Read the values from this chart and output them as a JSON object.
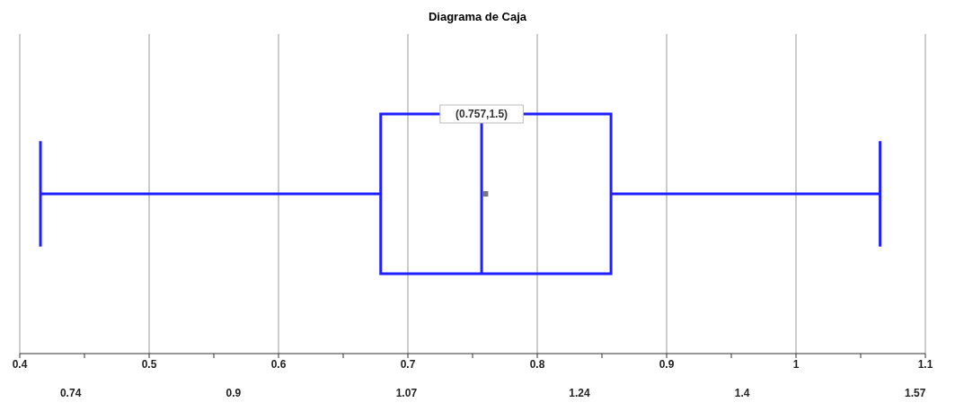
{
  "chart_data": {
    "type": "box",
    "title": "Diagrama de Caja",
    "orientation": "horizontal",
    "categories": [
      null
    ],
    "boxes": [
      {
        "low": 0.416,
        "q1": 0.679,
        "median": 0.757,
        "q3": 0.857,
        "high": 1.065,
        "mean": 0.76
      }
    ],
    "color": "#1f1fff",
    "xlim": [
      0.4,
      1.1
    ],
    "xticks": [
      0.4,
      {
        "value": 0.45,
        "label": null
      },
      0.5,
      {
        "value": 0.55,
        "label": null
      },
      0.6,
      {
        "value": 0.65,
        "label": null
      },
      0.7,
      {
        "value": 0.75,
        "label": null
      },
      0.8,
      {
        "value": 0.85,
        "label": null
      },
      0.9,
      {
        "value": 0.95,
        "label": null
      },
      1,
      {
        "value": 1.05,
        "label": null
      },
      1.1
    ],
    "x2lim": [
      0.69,
      1.58
    ],
    "x2ticks": [
      0.74,
      0.9,
      1.07,
      1.24,
      1.4,
      1.57
    ],
    "grid": "x",
    "annotations": [
      {
        "text": "(0.757,1.5)",
        "x": 0.757
      }
    ]
  }
}
